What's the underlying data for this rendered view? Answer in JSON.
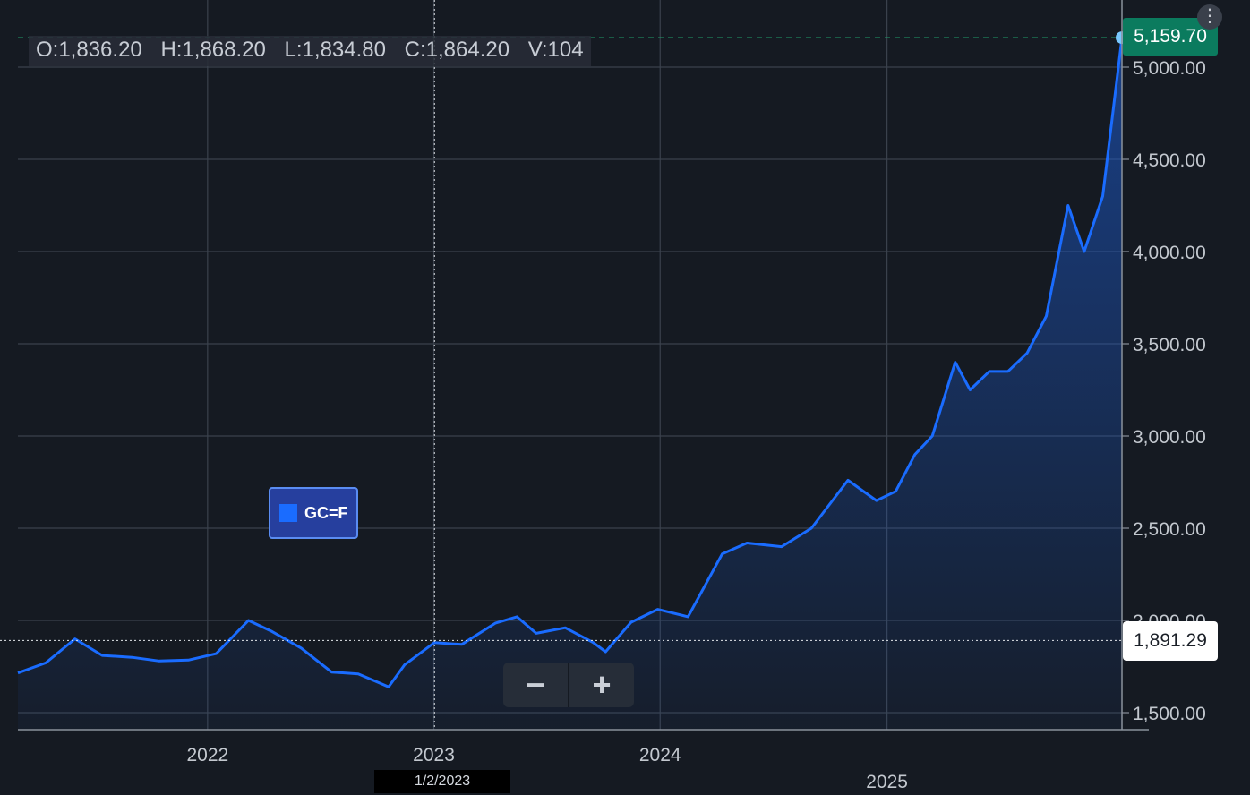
{
  "ohlc": {
    "open": "O:1,836.20",
    "high": "H:1,868.20",
    "low": "L:1,834.80",
    "close": "C:1,864.20",
    "volume": "V:104"
  },
  "legend": {
    "label": "GC=F",
    "color": "#1a6cff"
  },
  "last_price_label": "5,159.70",
  "crosshair": {
    "price_label": "1,891.29",
    "date_label": "1/2/2023"
  },
  "zoom": {
    "minus": "−",
    "plus": "+"
  },
  "menu_icon": "⋮",
  "colors": {
    "background": "#151a22",
    "line": "#1a6cff",
    "last_badge": "#0b7b5e",
    "grid": "#3b424d"
  },
  "chart_data": {
    "type": "area",
    "series": [
      {
        "name": "GC=F",
        "x": [
          "2021-03-01",
          "2021-04-15",
          "2021-06-01",
          "2021-07-15",
          "2021-09-01",
          "2021-10-15",
          "2021-12-01",
          "2022-01-15",
          "2022-03-08",
          "2022-04-15",
          "2022-06-01",
          "2022-07-20",
          "2022-09-01",
          "2022-10-20",
          "2022-11-15",
          "2023-01-02",
          "2023-02-15",
          "2023-04-10",
          "2023-05-15",
          "2023-06-15",
          "2023-08-01",
          "2023-09-15",
          "2023-10-05",
          "2023-11-15",
          "2023-12-28",
          "2024-02-15",
          "2024-04-10",
          "2024-05-20",
          "2024-07-15",
          "2024-09-01",
          "2024-10-30",
          "2024-12-15",
          "2025-01-15",
          "2025-02-15",
          "2025-03-15",
          "2025-04-21",
          "2025-05-15",
          "2025-06-15",
          "2025-07-15",
          "2025-08-15",
          "2025-09-15",
          "2025-10-20",
          "2025-11-15",
          "2025-12-15",
          "2026-01-15"
        ],
        "y": [
          1715,
          1770,
          1900,
          1810,
          1800,
          1780,
          1785,
          1820,
          2000,
          1940,
          1850,
          1720,
          1710,
          1640,
          1760,
          1880,
          1870,
          1985,
          2020,
          1930,
          1960,
          1880,
          1830,
          1990,
          2060,
          2020,
          2360,
          2420,
          2400,
          2500,
          2760,
          2650,
          2700,
          2900,
          3000,
          3400,
          3250,
          3350,
          3350,
          3450,
          3650,
          4250,
          4000,
          4300,
          5159.7
        ]
      }
    ],
    "ylim": [
      1500,
      5200
    ],
    "yticks": [
      "1,500.00",
      "2,000.00",
      "2,500.00",
      "3,000.00",
      "3,500.00",
      "4,000.00",
      "4,500.00",
      "5,000.00"
    ],
    "xticks": [
      "2022",
      "2023",
      "2024",
      "2025"
    ],
    "grid": true,
    "legend": "center-left"
  }
}
